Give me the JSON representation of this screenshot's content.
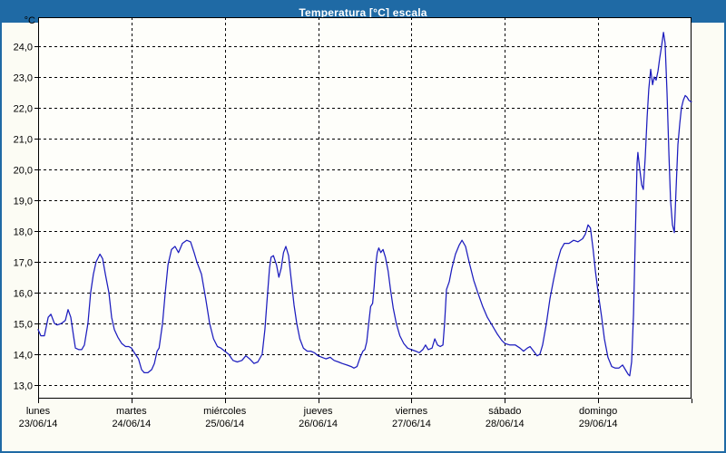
{
  "window": {
    "title": "Temperatura [°C] escala"
  },
  "y_axis": {
    "unit_label": "°C",
    "tick_values": [
      24,
      23,
      22,
      21,
      20,
      19,
      18,
      17,
      16,
      15,
      14,
      13
    ],
    "tick_labels": [
      "24,0",
      "23,0",
      "22,0",
      "21,0",
      "20,0",
      "19,0",
      "18,0",
      "17,0",
      "16,0",
      "15,0",
      "14,0",
      "13,0"
    ]
  },
  "x_axis": {
    "days": [
      {
        "name": "lunes",
        "date": "23/06/14"
      },
      {
        "name": "martes",
        "date": "24/06/14"
      },
      {
        "name": "miércoles",
        "date": "25/06/14"
      },
      {
        "name": "jueves",
        "date": "26/06/14"
      },
      {
        "name": "viernes",
        "date": "27/06/14"
      },
      {
        "name": "sábado",
        "date": "28/06/14"
      },
      {
        "name": "domingo",
        "date": "29/06/14"
      }
    ]
  },
  "colors": {
    "header_bg": "#1f6aa5",
    "frame_border": "#1f6aa5",
    "line": "#1c1cbe",
    "grid": "#000000",
    "plot_bg": "#fefefa",
    "text": "#000000"
  },
  "chart_data": {
    "type": "line",
    "title": "Temperatura [°C] escala",
    "ylabel": "°C",
    "ylim": [
      12.56,
      24.94
    ],
    "yticks": [
      13,
      14,
      15,
      16,
      17,
      18,
      19,
      20,
      21,
      22,
      23,
      24
    ],
    "grid": "dashed, horizontal every 1°C and vertical at each day boundary",
    "legend": "none",
    "x_unit": "hours since lunes 23/06/14 00:00",
    "xlim": [
      0,
      168
    ],
    "day_boundaries_hours": [
      0,
      24,
      48,
      72,
      96,
      120,
      144,
      168
    ],
    "series": [
      {
        "name": "Temperatura [°C]",
        "points": [
          [
            0,
            14.8
          ],
          [
            0.7,
            14.6
          ],
          [
            1.6,
            14.6
          ],
          [
            2.6,
            15.2
          ],
          [
            3.3,
            15.3
          ],
          [
            4.2,
            15.0
          ],
          [
            4.9,
            14.95
          ],
          [
            6.0,
            15.0
          ],
          [
            7.0,
            15.1
          ],
          [
            7.7,
            15.45
          ],
          [
            8.4,
            15.2
          ],
          [
            9.1,
            14.6
          ],
          [
            9.6,
            14.2
          ],
          [
            10.5,
            14.15
          ],
          [
            11.2,
            14.15
          ],
          [
            11.9,
            14.3
          ],
          [
            12.8,
            15.0
          ],
          [
            13.5,
            16.0
          ],
          [
            14.2,
            16.6
          ],
          [
            14.9,
            17.0
          ],
          [
            15.9,
            17.25
          ],
          [
            16.6,
            17.1
          ],
          [
            17.3,
            16.6
          ],
          [
            18.2,
            16.0
          ],
          [
            18.9,
            15.2
          ],
          [
            19.6,
            14.8
          ],
          [
            20.5,
            14.55
          ],
          [
            21.5,
            14.35
          ],
          [
            22.5,
            14.25
          ],
          [
            23.3,
            14.25
          ],
          [
            24,
            14.2
          ],
          [
            25,
            14.0
          ],
          [
            25.8,
            13.85
          ],
          [
            26.6,
            13.5
          ],
          [
            27.3,
            13.4
          ],
          [
            28.2,
            13.4
          ],
          [
            29.2,
            13.5
          ],
          [
            29.9,
            13.7
          ],
          [
            30.6,
            14.1
          ],
          [
            31.1,
            14.2
          ],
          [
            32,
            15.0
          ],
          [
            32.7,
            16.0
          ],
          [
            33.4,
            16.9
          ],
          [
            34.3,
            17.4
          ],
          [
            35.2,
            17.5
          ],
          [
            36.1,
            17.3
          ],
          [
            37.1,
            17.6
          ],
          [
            38.2,
            17.7
          ],
          [
            39.2,
            17.65
          ],
          [
            40.1,
            17.3
          ],
          [
            40.8,
            17.0
          ],
          [
            42,
            16.6
          ],
          [
            43.1,
            15.8
          ],
          [
            44.1,
            15.0
          ],
          [
            45.1,
            14.5
          ],
          [
            46.1,
            14.25
          ],
          [
            47,
            14.2
          ],
          [
            48,
            14.1
          ],
          [
            49,
            14.0
          ],
          [
            50.1,
            13.8
          ],
          [
            51.2,
            13.75
          ],
          [
            52.4,
            13.8
          ],
          [
            53.4,
            13.95
          ],
          [
            54.4,
            13.85
          ],
          [
            55.5,
            13.7
          ],
          [
            56.5,
            13.75
          ],
          [
            57.6,
            14.0
          ],
          [
            58.3,
            14.8
          ],
          [
            58.9,
            15.8
          ],
          [
            59.5,
            16.8
          ],
          [
            59.9,
            17.15
          ],
          [
            60.5,
            17.2
          ],
          [
            61.3,
            16.9
          ],
          [
            61.9,
            16.5
          ],
          [
            62.5,
            16.8
          ],
          [
            63.1,
            17.3
          ],
          [
            63.7,
            17.5
          ],
          [
            64.4,
            17.2
          ],
          [
            65.1,
            16.4
          ],
          [
            65.8,
            15.6
          ],
          [
            66.5,
            15.0
          ],
          [
            67.3,
            14.5
          ],
          [
            68.2,
            14.2
          ],
          [
            69.2,
            14.1
          ],
          [
            70.1,
            14.1
          ],
          [
            71,
            14.05
          ],
          [
            72,
            13.95
          ],
          [
            73,
            13.9
          ],
          [
            74,
            13.85
          ],
          [
            75.1,
            13.9
          ],
          [
            76.1,
            13.8
          ],
          [
            77.2,
            13.75
          ],
          [
            78.2,
            13.7
          ],
          [
            79.4,
            13.65
          ],
          [
            80.5,
            13.6
          ],
          [
            81.2,
            13.55
          ],
          [
            82,
            13.6
          ],
          [
            82.8,
            13.9
          ],
          [
            83.5,
            14.1
          ],
          [
            84,
            14.15
          ],
          [
            84.5,
            14.4
          ],
          [
            85,
            15.0
          ],
          [
            85.5,
            15.55
          ],
          [
            86,
            15.65
          ],
          [
            86.4,
            16.2
          ],
          [
            86.8,
            16.9
          ],
          [
            87.2,
            17.3
          ],
          [
            87.6,
            17.45
          ],
          [
            88.1,
            17.3
          ],
          [
            88.7,
            17.4
          ],
          [
            89.3,
            17.15
          ],
          [
            90,
            16.7
          ],
          [
            90.6,
            16.1
          ],
          [
            91.3,
            15.5
          ],
          [
            92.1,
            15.0
          ],
          [
            93,
            14.6
          ],
          [
            94,
            14.35
          ],
          [
            95,
            14.2
          ],
          [
            96,
            14.15
          ],
          [
            97.1,
            14.1
          ],
          [
            98,
            14.05
          ],
          [
            98.9,
            14.15
          ],
          [
            99.6,
            14.3
          ],
          [
            100.3,
            14.15
          ],
          [
            101.3,
            14.2
          ],
          [
            102,
            14.5
          ],
          [
            102.7,
            14.3
          ],
          [
            103.4,
            14.25
          ],
          [
            104.1,
            14.3
          ],
          [
            104.5,
            15.0
          ],
          [
            105,
            16.1
          ],
          [
            105.7,
            16.35
          ],
          [
            106.4,
            16.8
          ],
          [
            107.3,
            17.25
          ],
          [
            108.3,
            17.55
          ],
          [
            109,
            17.7
          ],
          [
            109.9,
            17.5
          ],
          [
            110.8,
            17.0
          ],
          [
            112,
            16.4
          ],
          [
            113.2,
            15.95
          ],
          [
            114.3,
            15.55
          ],
          [
            115.5,
            15.2
          ],
          [
            116.7,
            14.95
          ],
          [
            118.1,
            14.65
          ],
          [
            119.2,
            14.45
          ],
          [
            120,
            14.35
          ],
          [
            121.3,
            14.3
          ],
          [
            122.7,
            14.3
          ],
          [
            123.9,
            14.2
          ],
          [
            124.8,
            14.1
          ],
          [
            125.8,
            14.2
          ],
          [
            126.5,
            14.25
          ],
          [
            127.4,
            14.1
          ],
          [
            128.3,
            13.95
          ],
          [
            129,
            14.0
          ],
          [
            129.7,
            14.3
          ],
          [
            130.7,
            15.0
          ],
          [
            131.6,
            15.8
          ],
          [
            132.5,
            16.4
          ],
          [
            133.5,
            17.0
          ],
          [
            134.4,
            17.4
          ],
          [
            135.3,
            17.6
          ],
          [
            136.5,
            17.6
          ],
          [
            137.7,
            17.7
          ],
          [
            138.8,
            17.65
          ],
          [
            140,
            17.75
          ],
          [
            140.7,
            17.9
          ],
          [
            141.4,
            18.2
          ],
          [
            142,
            18.1
          ],
          [
            142.7,
            17.4
          ],
          [
            143.3,
            16.7
          ],
          [
            144,
            16.0
          ],
          [
            144.9,
            15.2
          ],
          [
            145.6,
            14.5
          ],
          [
            146.5,
            13.9
          ],
          [
            147.5,
            13.6
          ],
          [
            148.4,
            13.55
          ],
          [
            149.3,
            13.55
          ],
          [
            150.3,
            13.65
          ],
          [
            151,
            13.5
          ],
          [
            151.7,
            13.35
          ],
          [
            152.1,
            13.3
          ],
          [
            152.6,
            13.75
          ],
          [
            153.1,
            15.3
          ],
          [
            153.5,
            17.6
          ],
          [
            154,
            20.2
          ],
          [
            154.2,
            20.55
          ],
          [
            154.7,
            20.0
          ],
          [
            155.2,
            19.5
          ],
          [
            155.6,
            19.35
          ],
          [
            156.1,
            20.4
          ],
          [
            156.6,
            21.7
          ],
          [
            157,
            22.6
          ],
          [
            157.5,
            23.25
          ],
          [
            158,
            22.75
          ],
          [
            158.4,
            23.0
          ],
          [
            158.9,
            22.9
          ],
          [
            159.4,
            23.2
          ],
          [
            159.8,
            23.6
          ],
          [
            160.3,
            24.0
          ],
          [
            160.8,
            24.45
          ],
          [
            161.2,
            24.1
          ],
          [
            161.7,
            22.5
          ],
          [
            162.2,
            20.5
          ],
          [
            162.6,
            19.0
          ],
          [
            163.1,
            18.2
          ],
          [
            163.6,
            17.95
          ],
          [
            164,
            19.3
          ],
          [
            164.5,
            20.8
          ],
          [
            165,
            21.5
          ],
          [
            165.4,
            22.0
          ],
          [
            165.9,
            22.25
          ],
          [
            166.4,
            22.4
          ],
          [
            166.8,
            22.35
          ],
          [
            167.3,
            22.25
          ],
          [
            167.8,
            22.2
          ],
          [
            168,
            22.2
          ]
        ]
      }
    ]
  }
}
